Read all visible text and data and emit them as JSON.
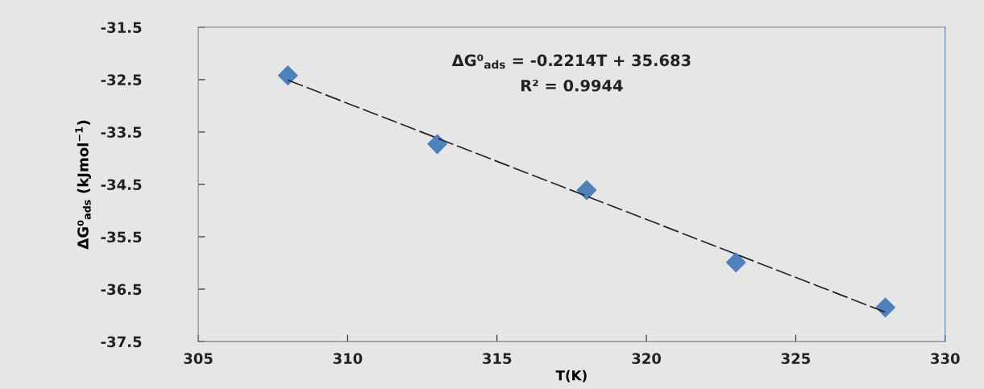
{
  "chart_data": {
    "type": "scatter",
    "xlabel": "T(K)",
    "ylabel": "ΔG⁰$_{ads}$ (kJmol$^{−1}$)",
    "x": [
      308,
      313,
      318,
      323,
      328
    ],
    "series": [
      {
        "color": "#4f81bd",
        "marker": "diamond",
        "values": [
          -32.42,
          -33.73,
          -34.61,
          -35.99,
          -36.85
        ]
      },
      {
        "type": "line",
        "color": "#222222",
        "line_style": "dashed",
        "x": [
          308,
          328
        ],
        "values": [
          -32.51,
          -36.94
        ]
      }
    ],
    "annotations": [
      "ΔG⁰$_{ads}$ = -0.2214T + 35.683",
      "R² = 0.9944"
    ],
    "xlim": [
      305,
      330
    ],
    "xticks": [
      305,
      310,
      315,
      320,
      325,
      330
    ],
    "ylim": [
      -37.5,
      -31.5
    ],
    "yticks": [
      -31.5,
      -32.5,
      -33.5,
      -34.5,
      -35.5,
      -36.5,
      -37.5
    ],
    "grid": false,
    "legend": false
  }
}
